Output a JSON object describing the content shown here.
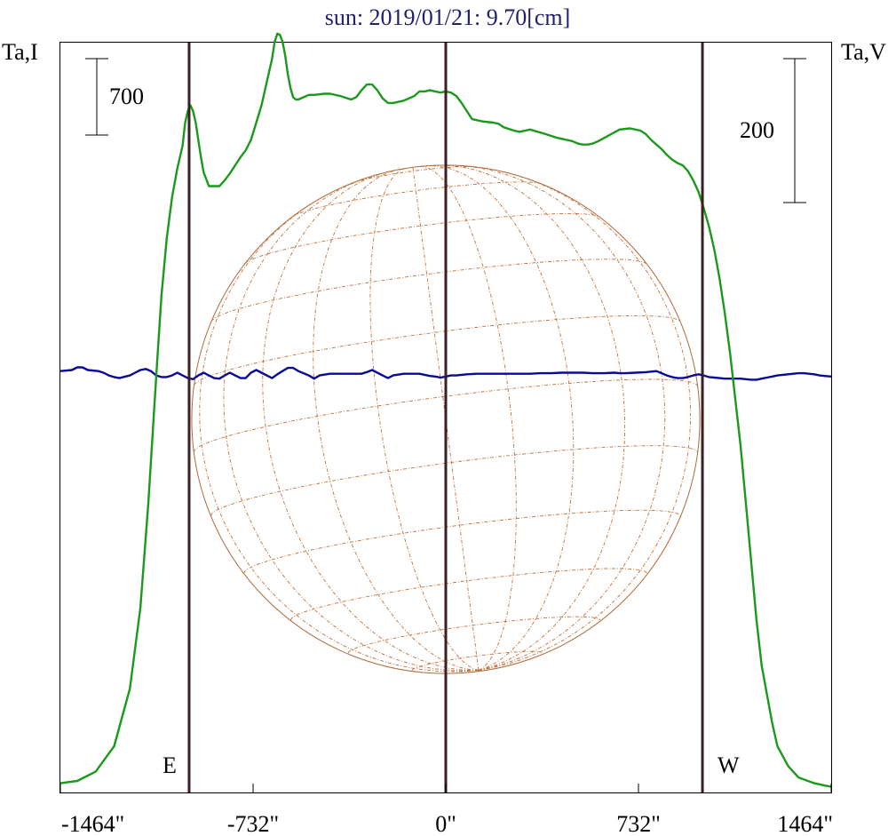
{
  "chart_data": {
    "type": "line",
    "title": "sun: 2019/01/21: 9.70[cm]",
    "ylabel_left": "Ta,I",
    "ylabel_right": "Ta,V",
    "scale_left": "700",
    "scale_right": "200",
    "marker_east": "E",
    "marker_west": "W",
    "x_unit": "arcsec",
    "xlim": [
      -1464,
      1464
    ],
    "x_ticks": [
      {
        "value": -1464,
        "label": "-1464\""
      },
      {
        "value": -732,
        "label": "-732\""
      },
      {
        "value": 0,
        "label": "0\""
      },
      {
        "value": 732,
        "label": "732\""
      },
      {
        "value": 1464,
        "label": "1464\""
      }
    ],
    "vertical_lines": [
      -975,
      0,
      975
    ],
    "solar_disk": {
      "center_x": 0,
      "radius": 965,
      "grid": true
    },
    "grid": false,
    "series": [
      {
        "key": "I",
        "color": "#1a9a1a",
        "ylim": [
          0,
          6500
        ],
        "x": [
          -1464,
          -1400,
          -1330,
          -1260,
          -1200,
          -1160,
          -1130,
          -1100,
          -1080,
          -1060,
          -1040,
          -1020,
          -1000,
          -990,
          -980,
          -970,
          -960,
          -950,
          -940,
          -930,
          -920,
          -900,
          -880,
          -860,
          -840,
          -820,
          -800,
          -780,
          -760,
          -740,
          -720,
          -700,
          -680,
          -660,
          -650,
          -640,
          -630,
          -620,
          -610,
          -600,
          -590,
          -580,
          -570,
          -560,
          -540,
          -520,
          -500,
          -460,
          -440,
          -400,
          -360,
          -340,
          -320,
          -300,
          -280,
          -260,
          -240,
          -220,
          -200,
          -160,
          -120,
          -100,
          -80,
          -60,
          -40,
          -20,
          0,
          20,
          40,
          60,
          80,
          100,
          140,
          180,
          200,
          220,
          260,
          280,
          320,
          380,
          420,
          460,
          480,
          500,
          520,
          540,
          560,
          580,
          620,
          660,
          700,
          740,
          760,
          780,
          800,
          820,
          840,
          860,
          880,
          900,
          920,
          940,
          960,
          980,
          1000,
          1020,
          1040,
          1060,
          1080,
          1100,
          1120,
          1140,
          1160,
          1180,
          1200,
          1240,
          1260,
          1300,
          1340,
          1400,
          1440,
          1464
        ],
        "y": [
          80,
          100,
          180,
          400,
          900,
          1600,
          2500,
          3600,
          4300,
          4800,
          5150,
          5400,
          5600,
          5800,
          5900,
          5950,
          5900,
          5800,
          5650,
          5500,
          5370,
          5250,
          5250,
          5250,
          5300,
          5360,
          5430,
          5500,
          5560,
          5650,
          5800,
          5950,
          6150,
          6350,
          6500,
          6570,
          6560,
          6500,
          6380,
          6220,
          6100,
          6020,
          6000,
          6000,
          6020,
          6040,
          6040,
          6050,
          6050,
          6030,
          6000,
          6020,
          6080,
          6130,
          6130,
          6080,
          6010,
          5970,
          5970,
          5990,
          6030,
          6070,
          6070,
          6080,
          6070,
          6060,
          6070,
          6060,
          6030,
          5970,
          5900,
          5830,
          5810,
          5800,
          5790,
          5760,
          5730,
          5720,
          5740,
          5700,
          5670,
          5650,
          5640,
          5620,
          5610,
          5610,
          5620,
          5640,
          5690,
          5740,
          5750,
          5730,
          5700,
          5650,
          5610,
          5570,
          5520,
          5480,
          5450,
          5430,
          5380,
          5300,
          5200,
          5060,
          4900,
          4700,
          4450,
          4150,
          3800,
          3400,
          3000,
          2500,
          2000,
          1500,
          1100,
          600,
          400,
          230,
          130,
          80,
          60,
          50
        ]
      },
      {
        "key": "V",
        "color": "#0a0a96",
        "ylim": [
          -775,
          620
        ],
        "x": [
          -1464,
          -1420,
          -1400,
          -1380,
          -1360,
          -1320,
          -1300,
          -1280,
          -1260,
          -1240,
          -1200,
          -1180,
          -1160,
          -1140,
          -1120,
          -1100,
          -1080,
          -1060,
          -1040,
          -1020,
          -1000,
          -980,
          -960,
          -940,
          -920,
          -900,
          -880,
          -860,
          -840,
          -820,
          -800,
          -780,
          -760,
          -740,
          -720,
          -700,
          -680,
          -660,
          -640,
          -620,
          -600,
          -580,
          -560,
          -520,
          -500,
          -480,
          -440,
          -400,
          -360,
          -340,
          -320,
          -300,
          -280,
          -260,
          -240,
          -220,
          -200,
          -160,
          -120,
          -100,
          -80,
          -60,
          -40,
          -20,
          0,
          20,
          40,
          80,
          120,
          160,
          200,
          220,
          240,
          280,
          320,
          360,
          400,
          440,
          480,
          520,
          560,
          600,
          640,
          660,
          680,
          720,
          760,
          780,
          800,
          820,
          840,
          860,
          880,
          900,
          920,
          940,
          960,
          980,
          1000,
          1020,
          1040,
          1060,
          1080,
          1100,
          1120,
          1140,
          1160,
          1180,
          1200,
          1220,
          1240,
          1260,
          1280,
          1300,
          1320,
          1340,
          1360,
          1380,
          1400,
          1420,
          1440,
          1464
        ],
        "y": [
          8,
          10,
          15,
          15,
          10,
          8,
          5,
          0,
          -3,
          -5,
          0,
          5,
          10,
          12,
          8,
          0,
          -3,
          -3,
          0,
          5,
          0,
          -5,
          -7,
          0,
          5,
          0,
          -5,
          -6,
          0,
          5,
          0,
          -5,
          -5,
          5,
          10,
          5,
          0,
          -5,
          2,
          8,
          14,
          14,
          8,
          0,
          -6,
          0,
          3,
          3,
          3,
          3,
          3,
          6,
          10,
          5,
          0,
          -5,
          0,
          3,
          3,
          3,
          1,
          -1,
          -2,
          -4,
          -2,
          0,
          0,
          2,
          3,
          3,
          3,
          3,
          3,
          3,
          3,
          4,
          4,
          5,
          5,
          5,
          4,
          4,
          5,
          4,
          4,
          5,
          6,
          7,
          8,
          4,
          0,
          -3,
          -5,
          -5,
          -3,
          0,
          2,
          0,
          -3,
          -4,
          -5,
          -6,
          -6,
          -6,
          -6,
          -7,
          -8,
          -8,
          -6,
          -4,
          -2,
          0,
          1,
          2,
          3,
          4,
          4,
          3,
          2,
          0,
          -1,
          -2
        ]
      }
    ]
  }
}
